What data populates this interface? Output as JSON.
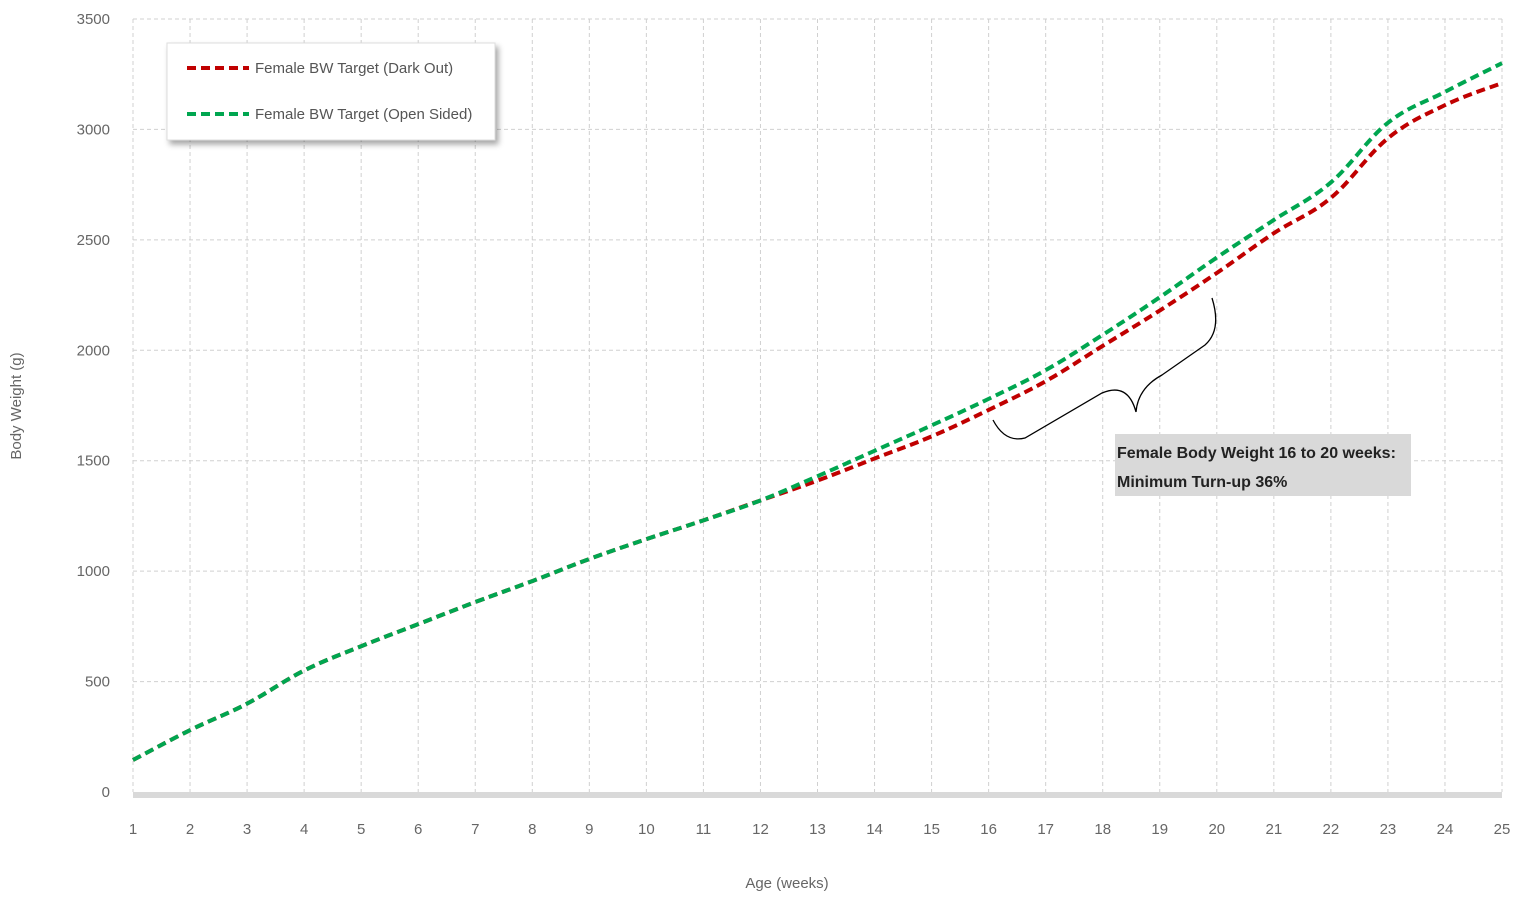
{
  "chart_data": {
    "type": "line",
    "title": "",
    "xlabel": "Age (weeks)",
    "ylabel": "Body Weight (g)",
    "x": [
      1,
      2,
      3,
      4,
      5,
      6,
      7,
      8,
      9,
      10,
      11,
      12,
      13,
      14,
      15,
      16,
      17,
      18,
      19,
      20,
      21,
      22,
      23,
      24,
      25
    ],
    "xlim": [
      1,
      25
    ],
    "ylim": [
      0,
      3500
    ],
    "yticks": [
      0,
      500,
      1000,
      1500,
      2000,
      2500,
      3000,
      3500
    ],
    "grid": true,
    "legend_position": "top-left",
    "series": [
      {
        "name": "Female BW Target (Dark Out)",
        "color": "#c00000",
        "values": [
          145,
          280,
          400,
          550,
          660,
          760,
          860,
          955,
          1055,
          1145,
          1230,
          1320,
          1410,
          1510,
          1610,
          1730,
          1860,
          2020,
          2180,
          2350,
          2530,
          2690,
          2960,
          3110,
          3210
        ]
      },
      {
        "name": "Female BW Target (Open Sided)",
        "color": "#00a650",
        "values": [
          145,
          280,
          400,
          550,
          660,
          760,
          860,
          955,
          1055,
          1145,
          1230,
          1320,
          1430,
          1545,
          1660,
          1780,
          1910,
          2070,
          2240,
          2420,
          2590,
          2760,
          3030,
          3170,
          3300
        ]
      }
    ],
    "annotation": {
      "line1": "Female Body Weight 16 to 20 weeks:",
      "line2": "Minimum Turn-up 36%"
    }
  }
}
